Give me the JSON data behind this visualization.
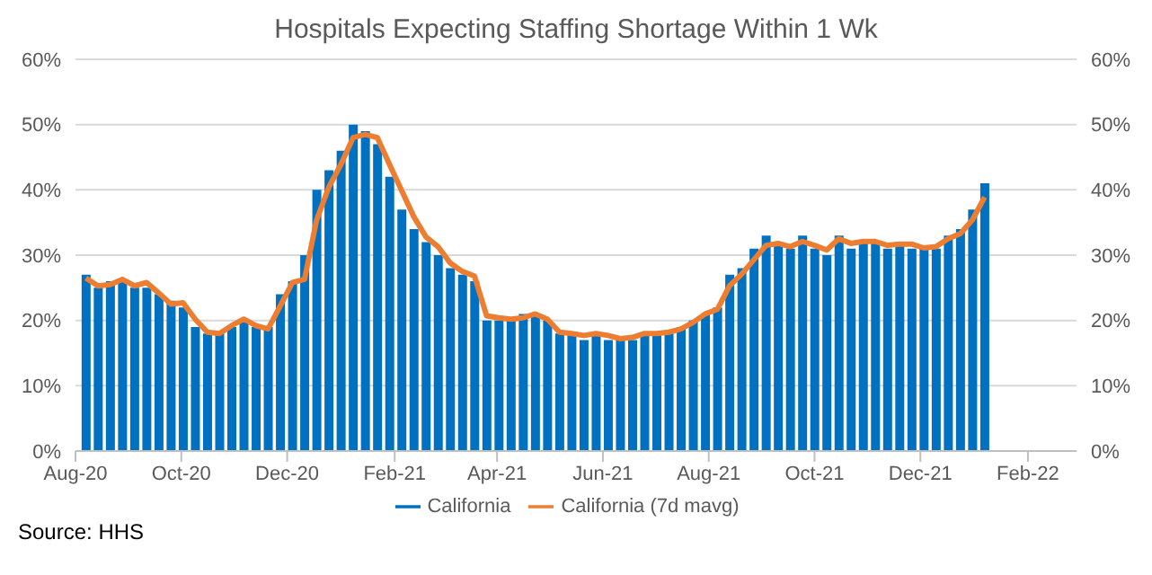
{
  "chart_data": {
    "type": "bar",
    "title": "Hospitals Expecting Staffing Shortage Within 1 Wk",
    "x": [
      "2020-08-07",
      "2020-08-14",
      "2020-08-21",
      "2020-08-28",
      "2020-09-04",
      "2020-09-11",
      "2020-09-18",
      "2020-09-25",
      "2020-10-02",
      "2020-10-09",
      "2020-10-16",
      "2020-10-23",
      "2020-10-30",
      "2020-11-06",
      "2020-11-13",
      "2020-11-20",
      "2020-11-27",
      "2020-12-04",
      "2020-12-11",
      "2020-12-18",
      "2020-12-25",
      "2021-01-01",
      "2021-01-08",
      "2021-01-15",
      "2021-01-22",
      "2021-01-29",
      "2021-02-05",
      "2021-02-12",
      "2021-02-19",
      "2021-02-26",
      "2021-03-05",
      "2021-03-12",
      "2021-03-19",
      "2021-03-26",
      "2021-04-02",
      "2021-04-09",
      "2021-04-16",
      "2021-04-23",
      "2021-04-30",
      "2021-05-07",
      "2021-05-14",
      "2021-05-21",
      "2021-05-28",
      "2021-06-04",
      "2021-06-11",
      "2021-06-18",
      "2021-06-25",
      "2021-07-02",
      "2021-07-09",
      "2021-07-16",
      "2021-07-23",
      "2021-07-30",
      "2021-08-06",
      "2021-08-13",
      "2021-08-20",
      "2021-08-27",
      "2021-09-03",
      "2021-09-10",
      "2021-09-17",
      "2021-09-24",
      "2021-10-01",
      "2021-10-08",
      "2021-10-15",
      "2021-10-22",
      "2021-10-29",
      "2021-11-05",
      "2021-11-12",
      "2021-11-19",
      "2021-11-26",
      "2021-12-03",
      "2021-12-10",
      "2021-12-17",
      "2021-12-24",
      "2021-12-31",
      "2022-01-07"
    ],
    "series": [
      {
        "name": "California",
        "color": "#0070c0",
        "values": [
          27,
          25,
          26,
          26,
          25,
          25,
          24,
          23,
          22,
          19,
          18,
          18,
          19,
          20,
          19,
          19,
          24,
          26,
          30,
          40,
          43,
          46,
          50,
          49,
          47,
          42,
          37,
          34,
          32,
          30,
          28,
          27,
          26,
          20,
          20,
          20,
          21,
          21,
          20,
          18,
          18,
          17,
          18,
          17,
          17,
          17,
          18,
          18,
          18,
          19,
          20,
          21,
          22,
          27,
          28,
          31,
          33,
          32,
          31,
          33,
          31,
          30,
          33,
          31,
          32,
          32,
          31,
          32,
          31,
          31,
          31,
          33,
          34,
          37,
          41
        ]
      },
      {
        "name": "California (7d mavg)",
        "type": "line",
        "color": "#ed7d31",
        "values": [
          26.5,
          25.3,
          25.5,
          26.3,
          25.3,
          25.8,
          24.2,
          22.5,
          22.7,
          20.2,
          18.2,
          18.0,
          19.2,
          20.2,
          19.2,
          18.7,
          22.2,
          25.8,
          26.3,
          35.4,
          40.4,
          43.9,
          48.0,
          48.5,
          48.0,
          43.9,
          39.9,
          35.9,
          32.8,
          31.3,
          28.8,
          27.5,
          26.8,
          20.7,
          20.4,
          20.2,
          20.4,
          21.0,
          20.2,
          18.2,
          18.0,
          17.7,
          18.0,
          17.7,
          17.2,
          17.4,
          18.0,
          18.0,
          18.2,
          18.7,
          19.7,
          21.0,
          21.7,
          25.3,
          27.1,
          29.3,
          31.5,
          31.8,
          31.3,
          32.1,
          31.5,
          30.8,
          32.5,
          31.8,
          32.1,
          32.1,
          31.5,
          31.7,
          31.7,
          31.1,
          31.3,
          32.5,
          33.3,
          35.4,
          38.9
        ]
      }
    ],
    "xlim": [
      "2020-08-01",
      "2022-03-01"
    ],
    "xticks": [
      {
        "value": "2020-08-01",
        "label": "Aug-20"
      },
      {
        "value": "2020-10-01",
        "label": "Oct-20"
      },
      {
        "value": "2020-12-01",
        "label": "Dec-20"
      },
      {
        "value": "2021-02-01",
        "label": "Feb-21"
      },
      {
        "value": "2021-04-01",
        "label": "Apr-21"
      },
      {
        "value": "2021-06-01",
        "label": "Jun-21"
      },
      {
        "value": "2021-08-01",
        "label": "Aug-21"
      },
      {
        "value": "2021-10-01",
        "label": "Oct-21"
      },
      {
        "value": "2021-12-01",
        "label": "Dec-21"
      },
      {
        "value": "2022-02-01",
        "label": "Feb-22"
      }
    ],
    "ylim": [
      0,
      60
    ],
    "yticks": [
      {
        "value": 0,
        "label": "0%"
      },
      {
        "value": 10,
        "label": "10%"
      },
      {
        "value": 20,
        "label": "20%"
      },
      {
        "value": 30,
        "label": "30%"
      },
      {
        "value": 40,
        "label": "40%"
      },
      {
        "value": 50,
        "label": "50%"
      },
      {
        "value": 60,
        "label": "60%"
      }
    ],
    "y2lim": [
      0,
      60
    ],
    "y2ticks": [
      {
        "value": 0,
        "label": "0%"
      },
      {
        "value": 10,
        "label": "10%"
      },
      {
        "value": 20,
        "label": "20%"
      },
      {
        "value": 30,
        "label": "30%"
      },
      {
        "value": 40,
        "label": "40%"
      },
      {
        "value": 50,
        "label": "50%"
      },
      {
        "value": 60,
        "label": "60%"
      }
    ],
    "grid": "y",
    "legend": "bottom",
    "marker": "none",
    "line_style": "solid",
    "annotations": [
      "Source: HHS"
    ]
  }
}
